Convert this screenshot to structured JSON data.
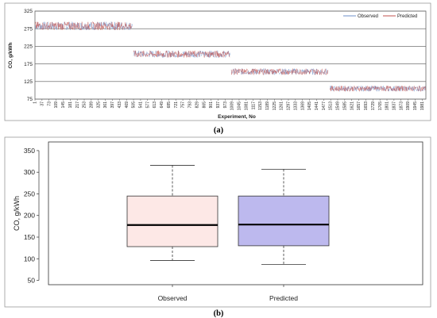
{
  "chart_data": [
    {
      "type": "line",
      "panel_label": "(a)",
      "xlabel": "Experiment, No",
      "ylabel": "CO, g/kWh",
      "ylim": [
        75,
        325
      ],
      "yticks": [
        75,
        125,
        175,
        225,
        275,
        325
      ],
      "xlim": [
        1,
        2000
      ],
      "xticks": [
        1,
        37,
        73,
        109,
        145,
        181,
        217,
        253,
        289,
        325,
        361,
        397,
        433,
        469,
        505,
        541,
        577,
        613,
        649,
        685,
        721,
        757,
        793,
        829,
        865,
        901,
        937,
        973,
        1009,
        1045,
        1081,
        1117,
        1153,
        1189,
        1225,
        1261,
        1297,
        1333,
        1369,
        1405,
        1441,
        1477,
        1513,
        1549,
        1585,
        1621,
        1657,
        1693,
        1729,
        1765,
        1801,
        1837,
        1873,
        1909,
        1945,
        1981
      ],
      "grid": true,
      "legend_position": "top-right",
      "segments": [
        {
          "x": [
            1,
            500
          ],
          "level": 283,
          "amplitude": 12
        },
        {
          "x": [
            505,
            1000
          ],
          "level": 203,
          "amplitude": 10
        },
        {
          "x": [
            1005,
            1500
          ],
          "level": 153,
          "amplitude": 9
        },
        {
          "x": [
            1510,
            2000
          ],
          "level": 105,
          "amplitude": 8
        }
      ],
      "series": [
        {
          "name": "Observed",
          "color": "#6d8fc8"
        },
        {
          "name": "Predicted",
          "color": "#c0504d"
        }
      ]
    },
    {
      "type": "box",
      "panel_label": "(b)",
      "ylabel": "CO, g/kWh",
      "ylim": [
        40,
        370
      ],
      "yticks": [
        50,
        100,
        150,
        200,
        250,
        300,
        350
      ],
      "categories": [
        "Observed",
        "Predicted"
      ],
      "boxes": [
        {
          "whisker_low": 96,
          "q1": 128,
          "median": 178,
          "q3": 245,
          "whisker_high": 316,
          "color": "#fde8e6"
        },
        {
          "whisker_low": 87,
          "q1": 130,
          "median": 179,
          "q3": 245,
          "whisker_high": 307,
          "color": "#bdb9ee"
        }
      ]
    }
  ]
}
